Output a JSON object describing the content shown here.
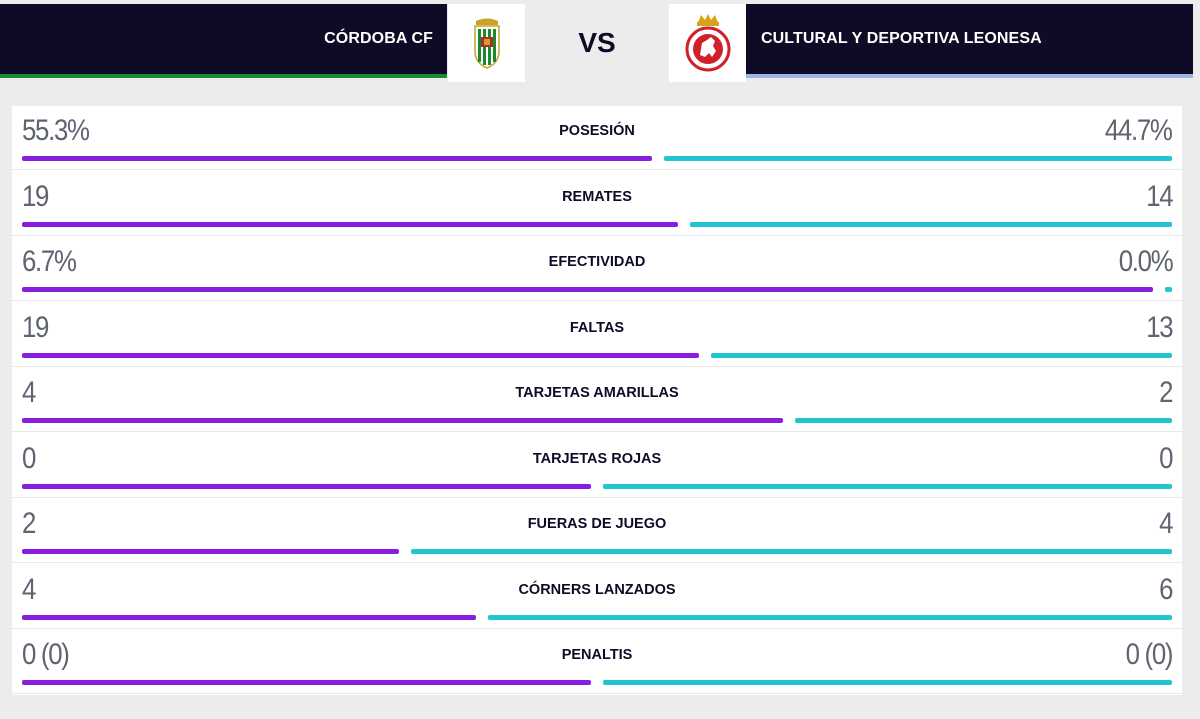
{
  "header": {
    "home_team": "CÓRDOBA CF",
    "away_team": "CULTURAL Y DEPORTIVA LEONESA",
    "vs_label": "VS",
    "home_crest_icon": "cordoba-cf-crest-icon",
    "away_crest_icon": "cultural-leonesa-crest-icon"
  },
  "colors": {
    "home_bar": "#8a1ee0",
    "away_bar": "#22c4cf",
    "header_bg": "#0d0b26",
    "home_accent": "#1b8a2e",
    "away_accent": "#9fb4e6"
  },
  "stats": [
    {
      "label": "POSESIÓN",
      "home": "55.3%",
      "away": "44.7%",
      "home_share": 0.553
    },
    {
      "label": "REMATES",
      "home": "19",
      "away": "14",
      "home_share": 0.576
    },
    {
      "label": "EFECTIVIDAD",
      "home": "6.7%",
      "away": "0.0%",
      "home_share": 1.0
    },
    {
      "label": "FALTAS",
      "home": "19",
      "away": "13",
      "home_share": 0.594
    },
    {
      "label": "TARJETAS AMARILLAS",
      "home": "4",
      "away": "2",
      "home_share": 0.667
    },
    {
      "label": "TARJETAS ROJAS",
      "home": "0",
      "away": "0",
      "home_share": 0.5
    },
    {
      "label": "FUERAS DE JUEGO",
      "home": "2",
      "away": "4",
      "home_share": 0.333
    },
    {
      "label": "CÓRNERS LANZADOS",
      "home": "4",
      "away": "6",
      "home_share": 0.4
    },
    {
      "label": "PENALTIS",
      "home": "0 (0)",
      "away": "0 (0)",
      "home_share": 0.5
    }
  ]
}
